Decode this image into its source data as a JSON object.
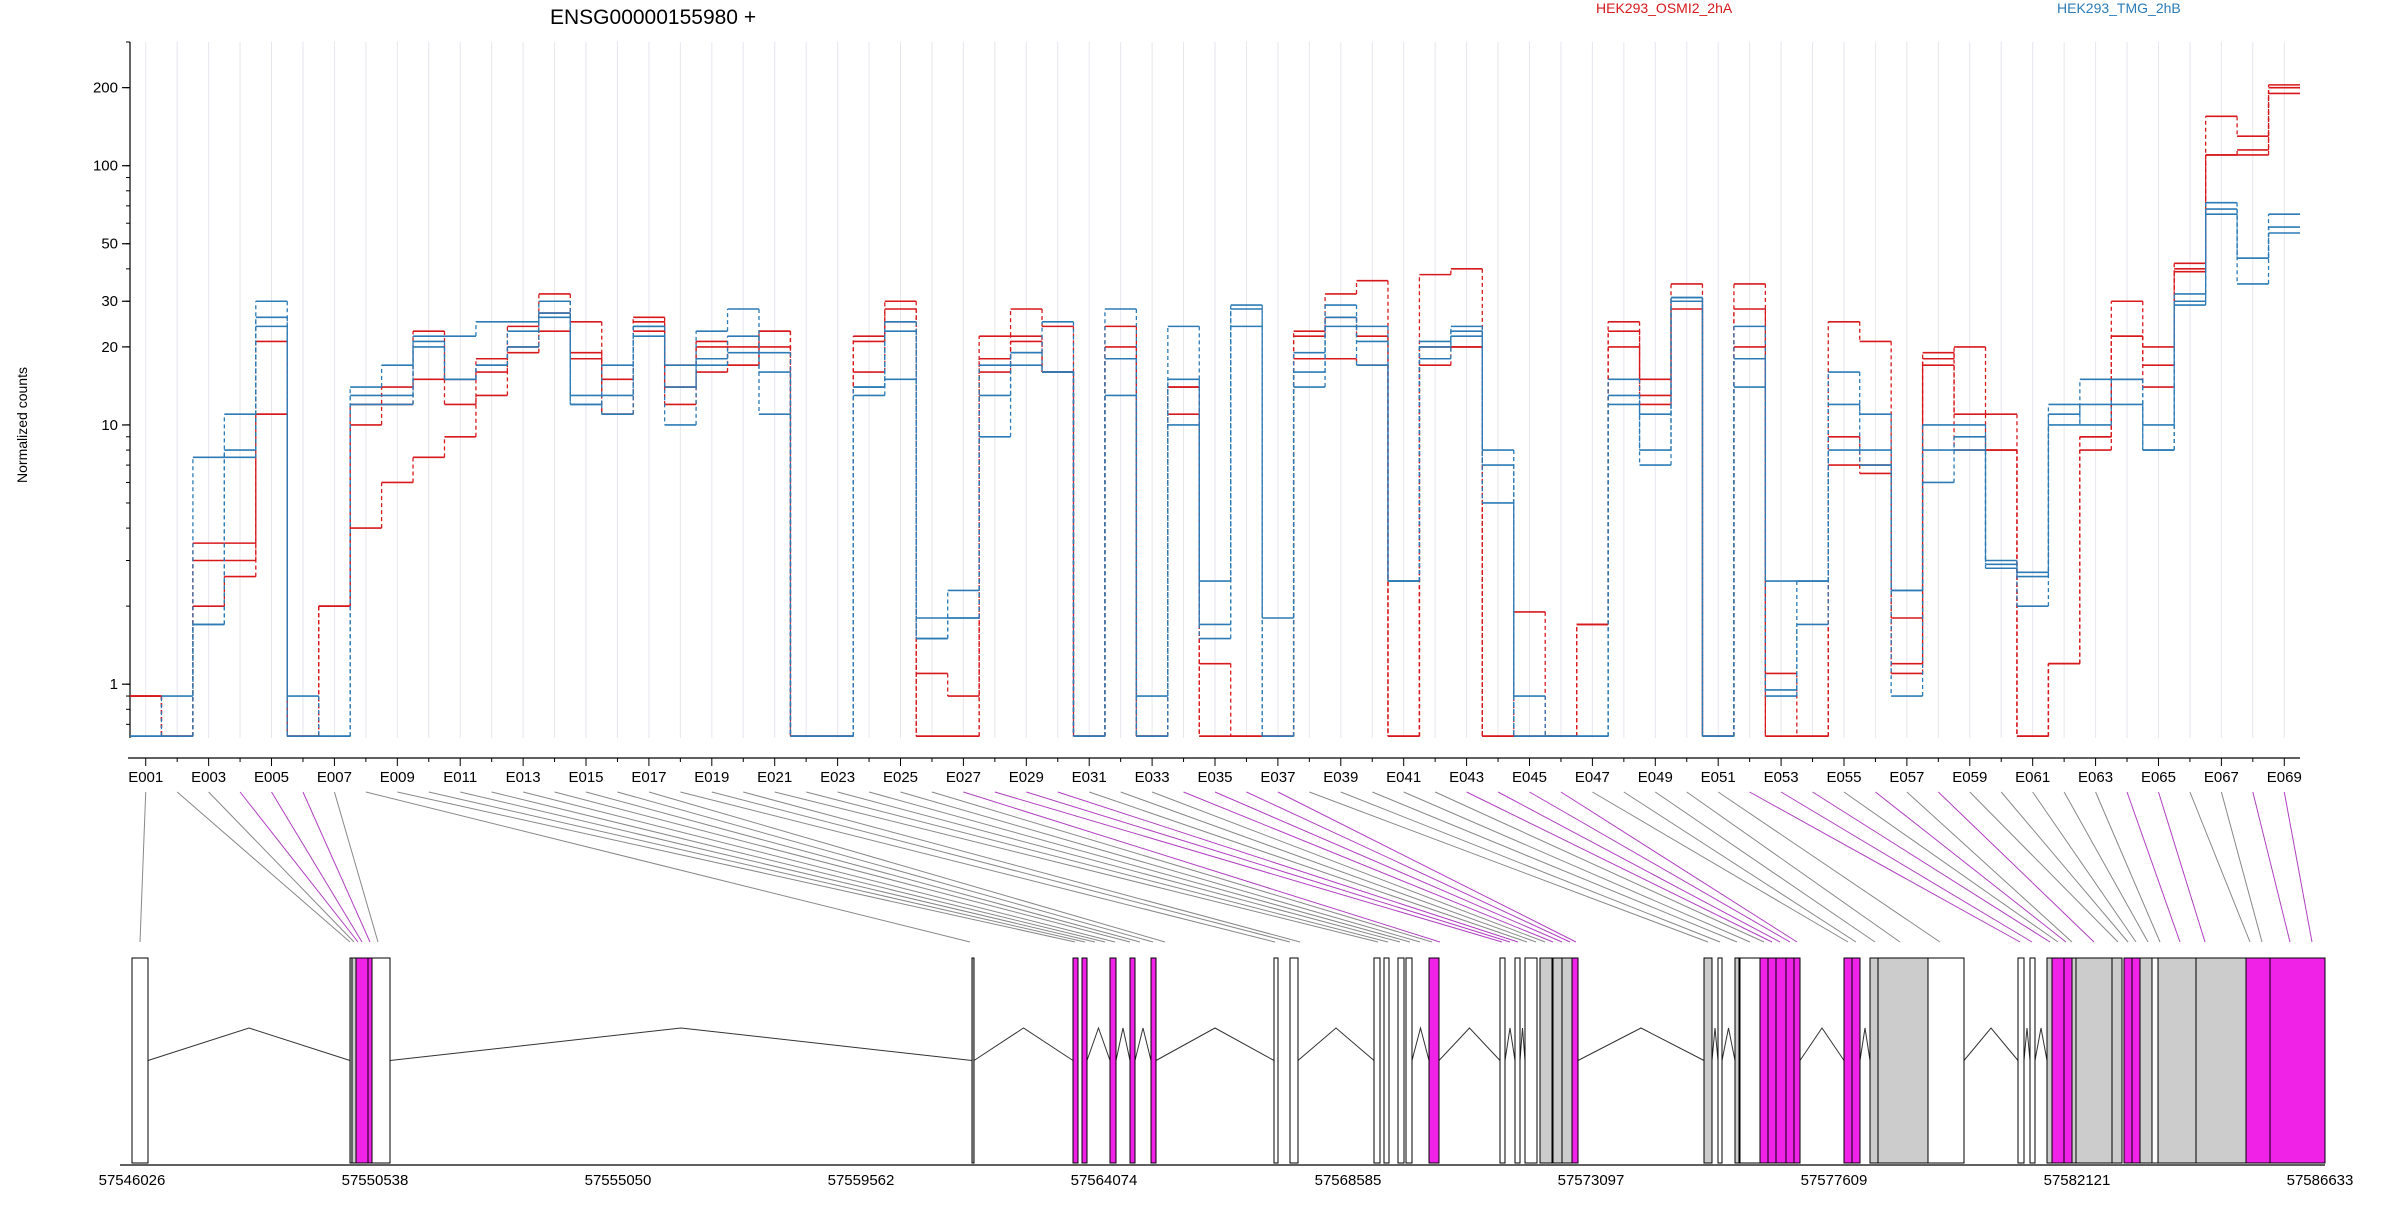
{
  "chart_data": {
    "type": "line",
    "title": "ENSG00000155980 +",
    "ylabel": "Normalized counts",
    "yscale": "log",
    "ylim": [
      0.62,
      300
    ],
    "yticks": [
      1,
      10,
      20,
      30,
      50,
      100,
      200
    ],
    "xtick_labels": [
      "E001",
      "E003",
      "E005",
      "E007",
      "E009",
      "E011",
      "E013",
      "E015",
      "E017",
      "E019",
      "E021",
      "E023",
      "E025",
      "E027",
      "E029",
      "E031",
      "E033",
      "E035",
      "E037",
      "E039",
      "E041",
      "E043",
      "E045",
      "E047",
      "E049",
      "E051",
      "E053",
      "E055",
      "E057",
      "E059",
      "E061",
      "E063",
      "E065",
      "E067",
      "E069"
    ],
    "legend": [
      {
        "name": "HEK293_OSMI2_2hA",
        "color": "#d7191c"
      },
      {
        "name": "HEK293_TMG_2hB",
        "color": "#2c7bb6"
      }
    ],
    "exons": [
      "E001",
      "E002",
      "E003",
      "E004",
      "E005",
      "E006",
      "E007",
      "E008",
      "E009",
      "E010",
      "E011",
      "E012",
      "E013",
      "E014",
      "E015",
      "E016",
      "E017",
      "E018",
      "E019",
      "E020",
      "E021",
      "E022",
      "E023",
      "E024",
      "E025",
      "E026",
      "E027",
      "E028",
      "E029",
      "E030",
      "E031",
      "E032",
      "E033",
      "E034",
      "E035",
      "E036",
      "E037",
      "E038",
      "E039",
      "E040",
      "E041",
      "E042",
      "E043",
      "E044",
      "E045",
      "E046",
      "E047",
      "E048",
      "E049",
      "E050",
      "E051",
      "E052",
      "E053",
      "E054",
      "E055",
      "E056",
      "E057",
      "E058",
      "E059",
      "E060",
      "E061",
      "E062",
      "E063",
      "E064",
      "E065",
      "E066",
      "E067",
      "E068",
      "E069"
    ],
    "series": [
      {
        "group": "HEK293_OSMI2_2hA",
        "color": "#d7191c",
        "values": [
          0.9,
          0.63,
          3,
          3,
          11,
          0.63,
          2,
          10,
          14,
          15,
          12,
          16,
          20,
          23,
          19,
          11,
          25,
          14,
          20,
          17,
          20,
          0.63,
          0.63,
          16,
          28,
          0.63,
          0.63,
          16,
          21,
          16,
          0.63,
          20,
          0.63,
          14,
          0.63,
          0.63,
          0.63,
          18,
          18,
          17,
          0.63,
          17,
          20,
          0.63,
          0.63,
          0.63,
          1.7,
          25,
          13,
          28,
          0.63,
          28,
          0.63,
          0.63,
          7,
          7,
          1.2,
          17,
          8,
          8,
          0.63,
          1.2,
          8,
          22,
          14,
          40,
          110,
          110,
          190
        ]
      },
      {
        "group": "HEK293_OSMI2_2hA",
        "color": "#d7191c",
        "values": [
          0.9,
          0.63,
          2,
          2.6,
          21,
          0.63,
          2,
          4,
          6,
          7.5,
          9,
          13,
          19,
          27,
          18,
          11,
          23,
          12,
          16,
          17,
          23,
          0.63,
          0.63,
          22,
          25,
          0.63,
          0.63,
          18,
          22,
          16,
          0.63,
          18,
          0.63,
          11,
          0.63,
          0.63,
          0.63,
          23,
          26,
          22,
          0.63,
          20,
          20,
          0.63,
          0.63,
          0.63,
          1.7,
          23,
          12,
          30,
          0.63,
          20,
          0.63,
          0.63,
          9,
          6.5,
          1.1,
          19,
          11,
          8,
          0.63,
          1.2,
          9,
          30,
          17,
          42,
          110,
          115,
          205
        ]
      },
      {
        "group": "HEK293_OSMI2_2hA",
        "color": "#d7191c",
        "values": [
          0.9,
          0.63,
          3.5,
          3.5,
          11,
          0.63,
          2,
          12,
          12,
          23,
          15,
          18,
          24,
          32,
          25,
          15,
          26,
          17,
          21,
          20,
          23,
          0.63,
          0.63,
          21,
          30,
          1.1,
          0.9,
          22,
          28,
          24,
          0.63,
          24,
          0.63,
          14,
          1.2,
          0.63,
          0.63,
          22,
          32,
          36,
          0.63,
          38,
          40,
          0.63,
          1.9,
          0.63,
          1.7,
          20,
          15,
          35,
          0.63,
          35,
          1.1,
          0.63,
          25,
          21,
          1.8,
          18,
          20,
          11,
          0.63,
          1.2,
          9,
          22,
          20,
          39,
          155,
          130,
          200
        ]
      },
      {
        "group": "HEK293_TMG_2hB",
        "color": "#2c7bb6",
        "values": [
          0.63,
          0.63,
          1.7,
          7.5,
          26,
          0.63,
          0.63,
          12,
          12,
          21,
          15,
          17,
          23,
          26,
          12,
          13,
          22,
          17,
          18,
          22,
          16,
          0.63,
          0.63,
          13,
          25,
          1.5,
          1.8,
          17,
          19,
          25,
          0.63,
          18,
          0.63,
          15,
          1.5,
          29,
          0.63,
          19,
          26,
          24,
          2.5,
          18,
          22,
          8,
          0.63,
          0.63,
          0.63,
          15,
          8,
          31,
          0.63,
          14,
          0.9,
          1.7,
          8,
          7,
          0.9,
          8,
          8,
          3,
          2,
          10,
          12,
          15,
          10,
          32,
          65,
          35,
          55
        ]
      },
      {
        "group": "HEK293_TMG_2hB",
        "color": "#2c7bb6",
        "values": [
          0.63,
          0.63,
          7.5,
          8,
          24,
          0.63,
          0.63,
          13,
          13,
          20,
          15,
          17,
          20,
          27,
          12,
          11,
          24,
          14,
          17,
          19,
          19,
          0.63,
          0.63,
          14,
          23,
          1.5,
          2.3,
          13,
          17,
          16,
          0.63,
          13,
          0.63,
          10,
          1.7,
          24,
          0.63,
          14,
          24,
          21,
          2.5,
          21,
          23,
          7,
          0.63,
          0.63,
          0.63,
          13,
          7,
          30,
          0.63,
          18,
          0.95,
          2.5,
          16,
          11,
          2.3,
          6,
          9,
          2.9,
          2.6,
          11,
          15,
          15,
          8,
          29,
          72,
          44,
          58
        ]
      },
      {
        "group": "HEK293_TMG_2hB",
        "color": "#2c7bb6",
        "values": [
          0.63,
          0.9,
          1.7,
          11,
          30,
          0.9,
          0.63,
          14,
          17,
          22,
          22,
          25,
          25,
          30,
          13,
          17,
          24,
          10,
          23,
          28,
          11,
          0.63,
          0.63,
          14,
          15,
          1.8,
          1.8,
          9,
          19,
          16,
          0.63,
          28,
          0.9,
          24,
          2.5,
          28,
          1.8,
          16,
          29,
          17,
          2.5,
          20,
          24,
          5,
          0.9,
          0.63,
          0.63,
          12,
          11,
          31,
          0.63,
          24,
          2.5,
          2.5,
          12,
          8,
          2.3,
          10,
          10,
          2.8,
          2.7,
          12,
          10,
          12,
          8,
          30,
          68,
          44,
          65
        ]
      }
    ]
  },
  "gene_model": {
    "start_label": "57546026",
    "end_label": "57586633",
    "axis_ticks": [
      "57546026",
      "57550538",
      "57555050",
      "57559562",
      "57564074",
      "57568585",
      "57573097",
      "57577609",
      "57582121",
      "57586633"
    ],
    "exon_colors": {
      "tested": "#cccccc",
      "significant": "#f022e8",
      "untested": "#ffffff"
    },
    "connector_colors": {
      "normal": "#888888",
      "significant": "#b040c0"
    }
  }
}
